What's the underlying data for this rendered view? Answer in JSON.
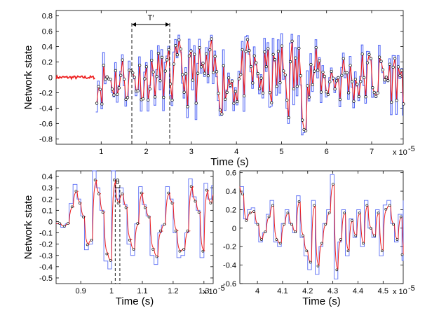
{
  "figure": {
    "colors": {
      "blue": "#5b6ef5",
      "red": "#ee2020",
      "marker": "#000000"
    }
  },
  "chart_data": [
    {
      "type": "line",
      "xlabel": "Time (s)",
      "ylabel": "Network state",
      "x_exponent": "x 10",
      "x_exponent_power": "-5",
      "xlim": [
        0,
        7.7
      ],
      "ylim": [
        -0.87,
        0.87
      ],
      "xticks": [
        1,
        2,
        3,
        4,
        5,
        6,
        7
      ],
      "yticks": [
        -0.8,
        -0.6,
        -0.4,
        -0.2,
        0,
        0.2,
        0.4,
        0.6,
        0.8
      ],
      "ytick_labels": [
        "-0.8",
        "-0.6",
        "-0.4",
        "-0.2",
        "0",
        "0.2",
        "0.4",
        "0.6",
        "0.8"
      ],
      "annotation": {
        "label": "T′",
        "x_start": 1.68,
        "x_end": 2.52
      },
      "series": [
        {
          "name": "",
          "color": "#5b6ef5",
          "style": "step",
          "segments": [
            {
              "x_start": 0.88,
              "x_end": 7.7,
              "seed": 11,
              "step": 0.038,
              "amplitude": 0.45,
              "amp_changes": [
                [
                  2.5,
                  0.55
                ],
                [
                  4.9,
                  0.75
                ],
                [
                  5.6,
                  0.5
                ]
              ]
            }
          ]
        },
        {
          "name": "",
          "color": "#ee2020",
          "style": "line",
          "pre_input": {
            "x_start": 0.0,
            "x_end": 0.88,
            "level": 0.0,
            "noise": 0.02
          }
        }
      ]
    },
    {
      "type": "line",
      "xlabel": "Time (s)",
      "ylabel": "Network state",
      "x_exponent": "x 10",
      "x_exponent_power": "-5",
      "xlim": [
        0.82,
        1.33
      ],
      "ylim": [
        -0.55,
        0.45
      ],
      "xticks": [
        0.9,
        1.0,
        1.1,
        1.2,
        1.3
      ],
      "xtick_labels": [
        "0.9",
        "1",
        "1.1",
        "1.2",
        "1.3"
      ],
      "yticks": [
        -0.5,
        -0.4,
        -0.3,
        -0.2,
        -0.1,
        0,
        0.1,
        0.2,
        0.3,
        0.4
      ],
      "ytick_labels": [
        "-0.5",
        "-0.4",
        "-0.3",
        "-0.2",
        "-0.1",
        "0",
        "0.1",
        "0.2",
        "0.3",
        "0.4"
      ],
      "annotation": {
        "label": "θ",
        "x_start": 1.012,
        "x_end": 1.027
      },
      "steps": [
        [
          0.82,
          -0.02
        ],
        [
          0.835,
          -0.05
        ],
        [
          0.85,
          -0.02
        ],
        [
          0.862,
          0.16
        ],
        [
          0.875,
          0.33
        ],
        [
          0.888,
          0.2
        ],
        [
          0.9,
          0.05
        ],
        [
          0.912,
          -0.25
        ],
        [
          0.925,
          -0.2
        ],
        [
          0.938,
          0.45
        ],
        [
          0.95,
          0.3
        ],
        [
          0.962,
          0.1
        ],
        [
          0.975,
          -0.35
        ],
        [
          0.988,
          -0.42
        ],
        [
          1.0,
          0.45
        ],
        [
          1.012,
          0.2
        ],
        [
          1.025,
          0.3
        ],
        [
          1.038,
          0.15
        ],
        [
          1.05,
          -0.2
        ],
        [
          1.062,
          -0.3
        ],
        [
          1.075,
          -0.02
        ],
        [
          1.088,
          0.31
        ],
        [
          1.1,
          0.15
        ],
        [
          1.112,
          0.05
        ],
        [
          1.125,
          -0.3
        ],
        [
          1.138,
          -0.38
        ],
        [
          1.15,
          -0.1
        ],
        [
          1.162,
          -0.03
        ],
        [
          1.175,
          0.31
        ],
        [
          1.188,
          0.2
        ],
        [
          1.2,
          -0.1
        ],
        [
          1.212,
          -0.32
        ],
        [
          1.225,
          -0.3
        ],
        [
          1.238,
          -0.1
        ],
        [
          1.25,
          0.38
        ],
        [
          1.262,
          0.22
        ],
        [
          1.275,
          0.1
        ],
        [
          1.287,
          -0.32
        ],
        [
          1.3,
          0.34
        ],
        [
          1.312,
          0.2
        ],
        [
          1.325,
          0.32
        ]
      ]
    },
    {
      "type": "line",
      "xlabel": "Time (s)",
      "ylabel": "",
      "x_exponent": "x 10",
      "x_exponent_power": "-5",
      "xlim": [
        3.93,
        4.58
      ],
      "ylim": [
        -0.6,
        0.62
      ],
      "xticks": [
        4.0,
        4.1,
        4.2,
        4.3,
        4.4,
        4.5
      ],
      "xtick_labels": [
        "4",
        "4.1",
        "4.2",
        "4.3",
        "4.4",
        "4.5"
      ],
      "yticks": [
        -0.6,
        -0.4,
        -0.2,
        0,
        0.2,
        0.4,
        0.6
      ],
      "ytick_labels": [
        "-0.6",
        "-0.4",
        "-0.2",
        "0",
        "0.2",
        "0.4",
        "0.6"
      ],
      "steps": [
        [
          3.93,
          0.45
        ],
        [
          3.945,
          0.1
        ],
        [
          3.96,
          0.2
        ],
        [
          3.975,
          0.22
        ],
        [
          3.99,
          0.05
        ],
        [
          4.005,
          -0.15
        ],
        [
          4.02,
          -0.05
        ],
        [
          4.035,
          0.15
        ],
        [
          4.05,
          0.3
        ],
        [
          4.065,
          -0.15
        ],
        [
          4.08,
          -0.2
        ],
        [
          4.095,
          0.05
        ],
        [
          4.11,
          0.2
        ],
        [
          4.125,
          0.05
        ],
        [
          4.14,
          -0.05
        ],
        [
          4.155,
          0.35
        ],
        [
          4.17,
          -0.1
        ],
        [
          4.185,
          -0.3
        ],
        [
          4.2,
          -0.45
        ],
        [
          4.215,
          0.3
        ],
        [
          4.23,
          -0.5
        ],
        [
          4.245,
          -0.2
        ],
        [
          4.26,
          0.05
        ],
        [
          4.275,
          0.2
        ],
        [
          4.29,
          0.58
        ],
        [
          4.305,
          -0.55
        ],
        [
          4.32,
          -0.15
        ],
        [
          4.335,
          0.2
        ],
        [
          4.35,
          -0.3
        ],
        [
          4.365,
          0.1
        ],
        [
          4.38,
          -0.1
        ],
        [
          4.395,
          0.2
        ],
        [
          4.41,
          -0.2
        ],
        [
          4.425,
          0.3
        ],
        [
          4.44,
          0.0
        ],
        [
          4.455,
          -0.1
        ],
        [
          4.47,
          0.2
        ],
        [
          4.485,
          -0.3
        ],
        [
          4.5,
          0.25
        ],
        [
          4.515,
          0.3
        ],
        [
          4.53,
          0.05
        ],
        [
          4.545,
          -0.15
        ],
        [
          4.56,
          0.15
        ],
        [
          4.575,
          -0.35
        ],
        [
          4.58,
          0.3
        ]
      ]
    }
  ]
}
